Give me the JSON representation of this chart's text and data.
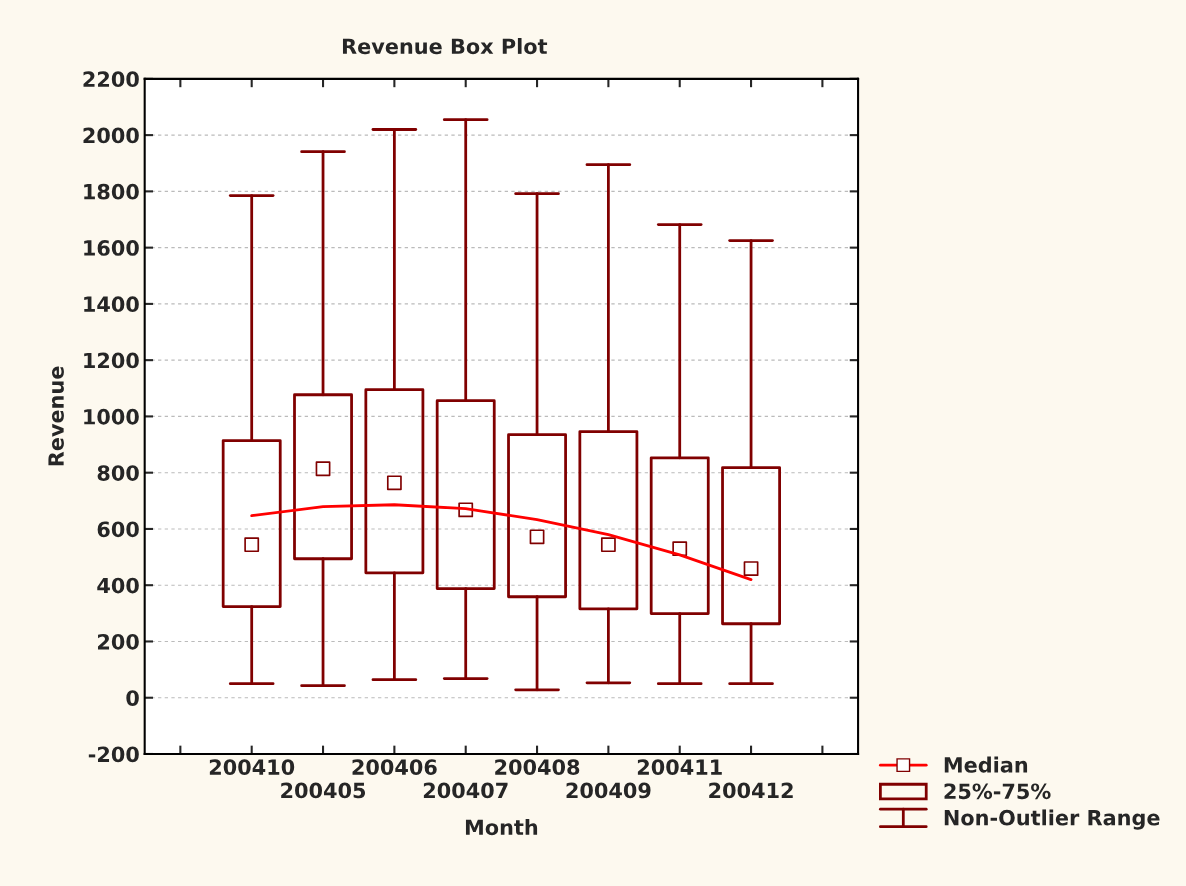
{
  "chart_data": {
    "type": "box",
    "title": "Revenue Box Plot",
    "xlabel": "Month",
    "ylabel": "Revenue",
    "categories": [
      "200410",
      "200405",
      "200406",
      "200407",
      "200408",
      "200409",
      "200411",
      "200412"
    ],
    "ylim": [
      -200,
      2200
    ],
    "yticks": [
      -200,
      0,
      200,
      400,
      600,
      800,
      1000,
      1200,
      1400,
      1600,
      1800,
      2000,
      2200
    ],
    "grid": "y",
    "legend": "bottom right",
    "series": [
      {
        "name": "25%-75%",
        "type": "box",
        "color": "#800000",
        "boxes": [
          {
            "low": 50,
            "q1": 324,
            "median": 544,
            "q3": 914,
            "high": 1785
          },
          {
            "low": 43,
            "q1": 494,
            "median": 814,
            "q3": 1077,
            "high": 1941
          },
          {
            "low": 64,
            "q1": 444,
            "median": 764,
            "q3": 1095,
            "high": 2020
          },
          {
            "low": 68,
            "q1": 388,
            "median": 668,
            "q3": 1056,
            "high": 2055
          },
          {
            "low": 28,
            "q1": 359,
            "median": 572,
            "q3": 935,
            "high": 1792
          },
          {
            "low": 53,
            "q1": 316,
            "median": 544,
            "q3": 946,
            "high": 1895
          },
          {
            "low": 50,
            "q1": 299,
            "median": 530,
            "q3": 853,
            "high": 1682
          },
          {
            "low": 50,
            "q1": 263,
            "median": 459,
            "q3": 818,
            "high": 1625
          }
        ]
      },
      {
        "name": "Median",
        "type": "line",
        "color": "#ff0000",
        "values": [
          647,
          679,
          686,
          672,
          633,
          580,
          508,
          420
        ]
      }
    ],
    "annotations": [
      "Non-Outlier Range"
    ]
  }
}
